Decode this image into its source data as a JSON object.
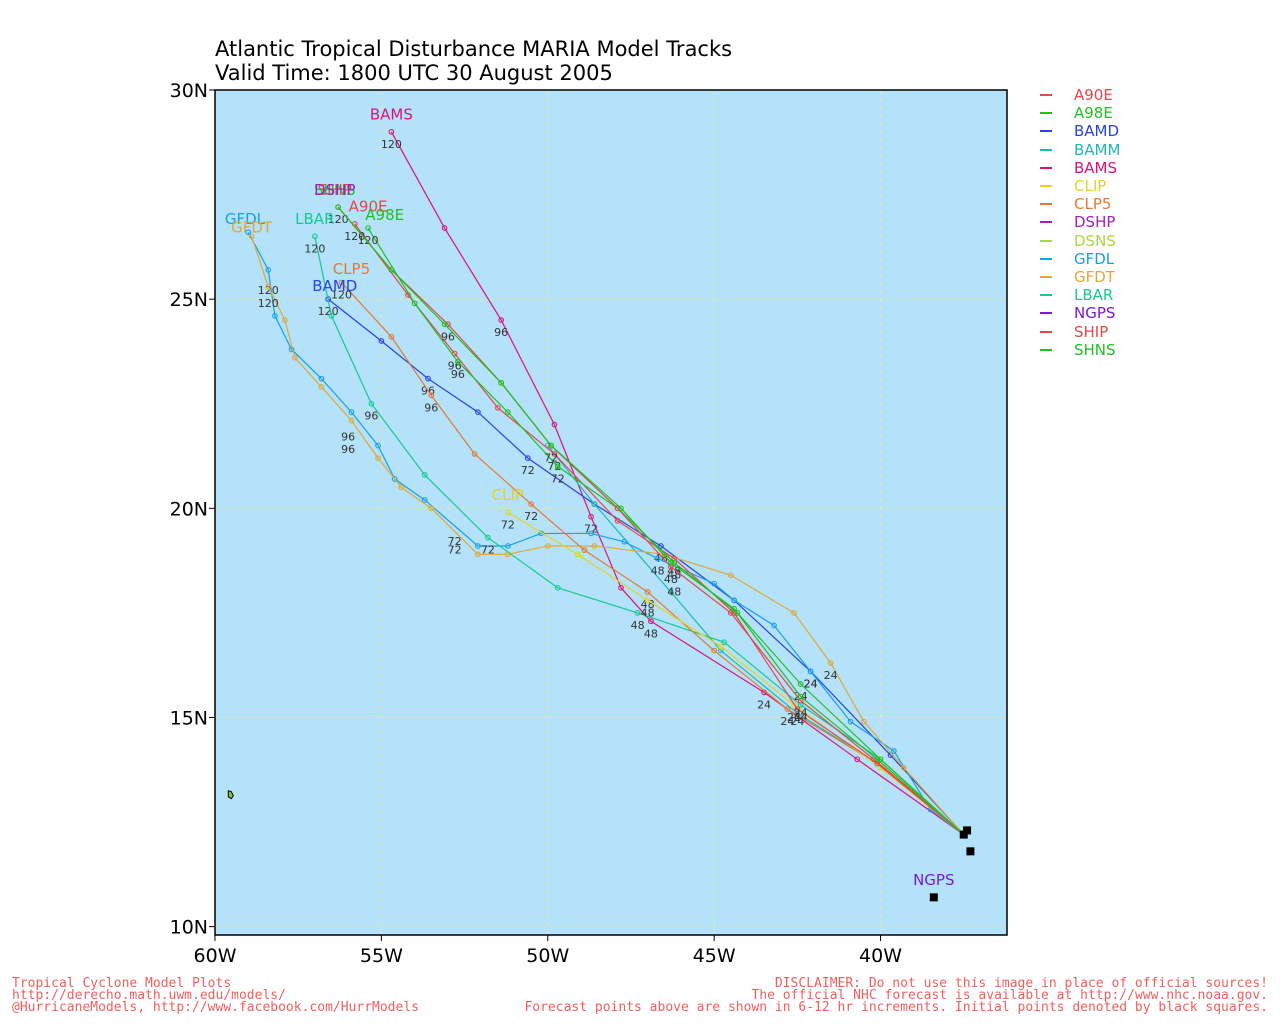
{
  "title_line1": "Atlantic Tropical Disturbance MARIA Model Tracks",
  "title_line2": "Valid Time: 1800 UTC 30 August 2005",
  "footer_left": [
    "Tropical Cyclone Model Plots",
    "http://derecho.math.uwm.edu/models/",
    "@HurricaneModels, http://www.facebook.com/HurrModels"
  ],
  "footer_right": [
    "DISCLAIMER: Do not use this image in place of official sources!",
    "The official NHC forecast is available at http://www.nhc.noaa.gov.",
    "Forecast points above are shown in 6-12 hr increments. Initial points denoted by black squares."
  ],
  "legend": [
    {
      "name": "A90E",
      "color": "#e8464a"
    },
    {
      "name": "A98E",
      "color": "#22c022"
    },
    {
      "name": "BAMD",
      "color": "#2b44e0"
    },
    {
      "name": "BAMM",
      "color": "#20b8b8"
    },
    {
      "name": "BAMS",
      "color": "#e0107a"
    },
    {
      "name": "CLIP",
      "color": "#e6d220"
    },
    {
      "name": "CLP5",
      "color": "#e87830"
    },
    {
      "name": "DSHP",
      "color": "#a020c0"
    },
    {
      "name": "DSNS",
      "color": "#a8d840"
    },
    {
      "name": "GFDL",
      "color": "#18a0e8"
    },
    {
      "name": "GFDT",
      "color": "#e0a838"
    },
    {
      "name": "LBAR",
      "color": "#18c890"
    },
    {
      "name": "NGPS",
      "color": "#7a18d8"
    },
    {
      "name": "SHIP",
      "color": "#e04848"
    },
    {
      "name": "SHNS",
      "color": "#20c020"
    }
  ],
  "chart_data": {
    "type": "map-tracks",
    "xlabels": [
      "60W",
      "55W",
      "50W",
      "45W",
      "40W"
    ],
    "ylabels": [
      "30N",
      "25N",
      "20N",
      "15N",
      "10N"
    ],
    "lon_range": [
      -60,
      -36.2
    ],
    "lat_range": [
      9.8,
      30
    ],
    "grid": true,
    "tracks": [
      {
        "model": "BAMS",
        "points": [
          [
            -37.5,
            12.2
          ],
          [
            -40.7,
            14.0
          ],
          [
            -43.5,
            15.6
          ],
          [
            -46.9,
            17.3
          ],
          [
            -47.8,
            18.1
          ],
          [
            -48.7,
            19.8
          ],
          [
            -49.8,
            22.0
          ],
          [
            -51.4,
            24.5
          ],
          [
            -53.1,
            26.7
          ],
          [
            -54.7,
            29.0
          ]
        ],
        "hour_labels": [
          [
            "24",
            -43.5,
            15.6
          ],
          [
            "48",
            -46.9,
            17.3
          ],
          [
            "72",
            -48.7,
            19.8
          ],
          [
            "96",
            -51.4,
            24.5
          ],
          [
            "120",
            -54.7,
            29.0
          ]
        ]
      },
      {
        "model": "BAMD",
        "points": [
          [
            -37.5,
            12.2
          ],
          [
            -39.7,
            14.1
          ],
          [
            -42.1,
            16.1
          ],
          [
            -44.4,
            17.8
          ],
          [
            -46.6,
            19.1
          ],
          [
            -48.6,
            20.1
          ],
          [
            -50.6,
            21.2
          ],
          [
            -52.1,
            22.3
          ],
          [
            -53.6,
            23.1
          ],
          [
            -55.0,
            24.0
          ],
          [
            -56.6,
            25.0
          ]
        ],
        "hour_labels": [
          [
            "24",
            -42.1,
            16.1
          ],
          [
            "48",
            -46.6,
            19.1
          ],
          [
            "72",
            -50.6,
            21.2
          ],
          [
            "96",
            -53.6,
            23.1
          ],
          [
            "120",
            -56.6,
            25.0
          ]
        ]
      },
      {
        "model": "BAMM",
        "points": [
          [
            -37.5,
            12.2
          ],
          [
            -40.1,
            13.9
          ],
          [
            -42.5,
            15.1
          ],
          [
            -44.8,
            16.6
          ],
          [
            -46.3,
            18.0
          ],
          [
            -48.6,
            20.1
          ],
          [
            -50.0,
            21.5
          ]
        ],
        "hour_labels": []
      },
      {
        "model": "GFDL",
        "points": [
          [
            -37.5,
            12.2
          ],
          [
            -38.5,
            12.8
          ],
          [
            -39.6,
            14.2
          ],
          [
            -40.9,
            14.9
          ],
          [
            -42.1,
            16.1
          ],
          [
            -43.2,
            17.2
          ],
          [
            -44.4,
            17.8
          ],
          [
            -45.0,
            18.2
          ],
          [
            -46.7,
            18.8
          ],
          [
            -47.7,
            19.2
          ],
          [
            -48.7,
            19.4
          ],
          [
            -50.2,
            19.4
          ],
          [
            -51.2,
            19.1
          ],
          [
            -52.1,
            19.1
          ],
          [
            -53.7,
            20.2
          ],
          [
            -54.6,
            20.7
          ],
          [
            -55.1,
            21.5
          ],
          [
            -55.9,
            22.3
          ],
          [
            -56.8,
            23.1
          ],
          [
            -57.7,
            23.8
          ],
          [
            -58.2,
            24.6
          ],
          [
            -58.4,
            25.7
          ],
          [
            -59.0,
            26.6
          ]
        ],
        "hour_labels": [
          [
            "24",
            -42.1,
            16.1
          ],
          [
            "48",
            -46.7,
            18.8
          ],
          [
            "72",
            -52.8,
            19.5
          ],
          [
            "96",
            -56.0,
            22.0
          ],
          [
            "120",
            -58.4,
            25.5
          ]
        ]
      },
      {
        "model": "GFDT",
        "points": [
          [
            -37.5,
            12.2
          ],
          [
            -39.3,
            13.8
          ],
          [
            -40.5,
            14.9
          ],
          [
            -41.5,
            16.3
          ],
          [
            -42.6,
            17.5
          ],
          [
            -44.5,
            18.4
          ],
          [
            -46.5,
            18.9
          ],
          [
            -48.6,
            19.1
          ],
          [
            -50.0,
            19.1
          ],
          [
            -51.2,
            18.9
          ],
          [
            -52.1,
            18.9
          ],
          [
            -53.5,
            20.0
          ],
          [
            -54.4,
            20.5
          ],
          [
            -55.1,
            21.2
          ],
          [
            -55.9,
            22.1
          ],
          [
            -56.8,
            22.9
          ],
          [
            -57.6,
            23.6
          ],
          [
            -57.9,
            24.5
          ],
          [
            -58.4,
            25.3
          ],
          [
            -58.9,
            26.5
          ]
        ],
        "hour_labels": [
          [
            "24",
            -41.5,
            16.3
          ],
          [
            "48",
            -46.2,
            18.3
          ],
          [
            "72",
            -52.8,
            19.3
          ],
          [
            "96",
            -56.0,
            21.7
          ],
          [
            "120",
            -58.4,
            25.2
          ]
        ]
      },
      {
        "model": "LBAR",
        "points": [
          [
            -37.5,
            12.2
          ],
          [
            -40.0,
            14.0
          ],
          [
            -42.4,
            15.3
          ],
          [
            -44.7,
            16.8
          ],
          [
            -47.3,
            17.5
          ],
          [
            -49.7,
            18.1
          ],
          [
            -51.8,
            19.3
          ],
          [
            -53.7,
            20.8
          ],
          [
            -55.3,
            22.5
          ],
          [
            -56.5,
            24.6
          ],
          [
            -57.0,
            26.5
          ]
        ],
        "hour_labels": [
          [
            "24",
            -42.4,
            15.3
          ],
          [
            "48",
            -47.3,
            17.5
          ],
          [
            "72",
            -51.8,
            19.3
          ],
          [
            "96",
            -55.3,
            22.5
          ],
          [
            "120",
            -57.0,
            26.5
          ]
        ]
      },
      {
        "model": "CLP5",
        "points": [
          [
            -37.5,
            12.2
          ],
          [
            -39.9,
            13.8
          ],
          [
            -42.8,
            15.2
          ],
          [
            -45.0,
            16.6
          ],
          [
            -47.0,
            18.0
          ],
          [
            -48.9,
            19.0
          ],
          [
            -50.5,
            20.1
          ],
          [
            -52.2,
            21.3
          ],
          [
            -53.5,
            22.7
          ],
          [
            -54.7,
            24.1
          ],
          [
            -56.2,
            25.4
          ]
        ],
        "hour_labels": [
          [
            "24",
            -42.8,
            15.2
          ],
          [
            "48",
            -47.0,
            18.0
          ],
          [
            "72",
            -50.5,
            20.1
          ],
          [
            "96",
            -53.5,
            22.7
          ],
          [
            "120",
            -56.2,
            25.4
          ]
        ]
      },
      {
        "model": "CLIP",
        "points": [
          [
            -37.5,
            12.2
          ],
          [
            -40.0,
            13.8
          ],
          [
            -42.6,
            15.3
          ],
          [
            -44.8,
            16.7
          ],
          [
            -47.0,
            17.8
          ],
          [
            -49.1,
            18.9
          ],
          [
            -51.2,
            19.9
          ]
        ],
        "hour_labels": [
          [
            "24",
            -42.6,
            15.3
          ],
          [
            "48",
            -47.0,
            17.8
          ],
          [
            "72",
            -51.2,
            19.9
          ]
        ]
      },
      {
        "model": "A90E",
        "points": [
          [
            -37.5,
            12.2
          ],
          [
            -40.1,
            13.9
          ],
          [
            -42.5,
            15.2
          ],
          [
            -44.4,
            17.5
          ],
          [
            -46.2,
            18.8
          ],
          [
            -47.9,
            19.7
          ],
          [
            -49.8,
            21.3
          ],
          [
            -51.5,
            22.4
          ],
          [
            -52.8,
            23.7
          ],
          [
            -54.2,
            25.1
          ],
          [
            -55.8,
            26.8
          ]
        ],
        "hour_labels": [
          [
            "24",
            -42.5,
            15.2
          ],
          [
            "48",
            -46.2,
            18.8
          ],
          [
            "72",
            -49.8,
            21.3
          ],
          [
            "96",
            -52.8,
            23.7
          ],
          [
            "120",
            -55.8,
            26.8
          ]
        ]
      },
      {
        "model": "A98E",
        "points": [
          [
            -37.5,
            12.2
          ],
          [
            -40.0,
            14.0
          ],
          [
            -42.4,
            15.8
          ],
          [
            -44.3,
            17.5
          ],
          [
            -46.2,
            18.7
          ],
          [
            -47.9,
            20.0
          ],
          [
            -49.7,
            21.0
          ],
          [
            -51.2,
            22.3
          ],
          [
            -52.7,
            23.5
          ],
          [
            -54.0,
            24.9
          ],
          [
            -55.4,
            26.7
          ]
        ],
        "hour_labels": [
          [
            "24",
            -42.4,
            15.8
          ],
          [
            "48",
            -46.2,
            18.7
          ],
          [
            "72",
            -49.7,
            21.0
          ],
          [
            "96",
            -52.7,
            23.5
          ],
          [
            "120",
            -55.4,
            26.7
          ]
        ]
      },
      {
        "model": "SHIP",
        "points": [
          [
            -37.5,
            12.2
          ],
          [
            -40.2,
            14.0
          ],
          [
            -42.4,
            15.4
          ],
          [
            -44.5,
            17.5
          ],
          [
            -46.3,
            18.6
          ],
          [
            -47.9,
            20.0
          ],
          [
            -49.9,
            21.5
          ],
          [
            -51.4,
            23.0
          ],
          [
            -53.0,
            24.4
          ],
          [
            -54.7,
            25.7
          ],
          [
            -56.3,
            27.2
          ]
        ],
        "hour_labels": [
          [
            "24",
            -42.4,
            15.4
          ],
          [
            "48",
            -46.3,
            18.6
          ],
          [
            "72",
            -49.9,
            21.5
          ],
          [
            "96",
            -53.0,
            24.4
          ],
          [
            "120",
            -56.3,
            27.2
          ]
        ]
      },
      {
        "model": "SHNS",
        "points": [
          [
            -37.5,
            12.2
          ],
          [
            -40.1,
            14.0
          ],
          [
            -42.4,
            15.5
          ],
          [
            -44.4,
            17.6
          ],
          [
            -46.3,
            18.7
          ],
          [
            -47.8,
            20.0
          ],
          [
            -49.9,
            21.5
          ],
          [
            -51.4,
            23.0
          ],
          [
            -53.1,
            24.4
          ],
          [
            -54.7,
            25.7
          ],
          [
            -56.3,
            27.2
          ]
        ],
        "hour_labels": []
      },
      {
        "model": "NGPS",
        "points": [
          [
            -38.4,
            10.7
          ]
        ],
        "hour_labels": []
      }
    ],
    "initial_points": [
      [
        -37.5,
        12.2
      ],
      [
        -37.4,
        12.3
      ],
      [
        -37.3,
        11.8
      ],
      [
        -38.4,
        10.7
      ]
    ],
    "track_labels": [
      {
        "text": "BAMS",
        "lon": -54.7,
        "lat": 29.2
      },
      {
        "text": "GFDL",
        "lon": -59.1,
        "lat": 26.7
      },
      {
        "text": "GFDT",
        "lon": -58.9,
        "lat": 26.5
      },
      {
        "text": "LBAR",
        "lon": -57.0,
        "lat": 26.7
      },
      {
        "text": "CLP5",
        "lon": -55.9,
        "lat": 25.5
      },
      {
        "text": "BAMD",
        "lon": -56.4,
        "lat": 25.1
      },
      {
        "text": "CLIP",
        "lon": -51.2,
        "lat": 20.1
      },
      {
        "text": "SHIP",
        "lon": -56.4,
        "lat": 27.4
      },
      {
        "text": "SHNS",
        "lon": -56.4,
        "lat": 27.4
      },
      {
        "text": "DSHP",
        "lon": -56.4,
        "lat": 27.4
      },
      {
        "text": "A90E",
        "lon": -55.4,
        "lat": 27.0
      },
      {
        "text": "A98E",
        "lon": -54.9,
        "lat": 26.8
      },
      {
        "text": "NGPS",
        "lon": -38.4,
        "lat": 10.9
      }
    ]
  }
}
